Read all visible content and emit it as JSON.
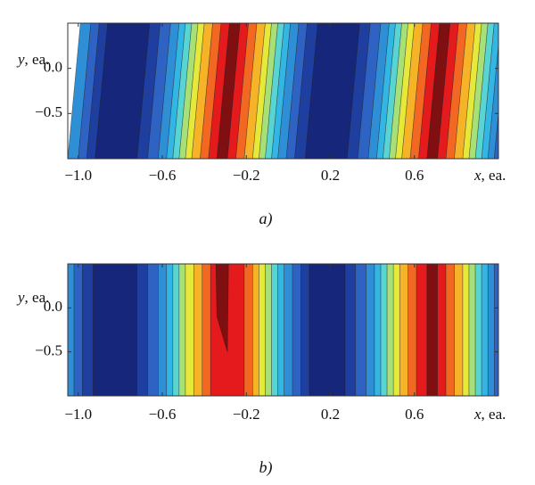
{
  "chart_data": [
    {
      "type": "heatmap",
      "caption": "a)",
      "xlabel_var": "x",
      "xlabel_unit": ", ea.",
      "ylabel_var": "y",
      "ylabel_unit": ", ea.",
      "xlim": [
        -1.05,
        1.0
      ],
      "ylim": [
        -1.0,
        0.5
      ],
      "x_ticks": [
        {
          "value": -1.0,
          "label": "−1.0"
        },
        {
          "value": -0.6,
          "label": "−0.6"
        },
        {
          "value": -0.2,
          "label": "−0.2"
        },
        {
          "value": 0.2,
          "label": "0.2"
        },
        {
          "value": 0.6,
          "label": "0.6"
        }
      ],
      "y_ticks": [
        {
          "value": 0.0,
          "label": "0.0"
        },
        {
          "value": -0.5,
          "label": "−0.5"
        }
      ],
      "bands": [
        {
          "x0": -1.05,
          "x1": -1.0,
          "level": 3
        },
        {
          "x0": -1.0,
          "x1": -0.96,
          "level": 2
        },
        {
          "x0": -0.96,
          "x1": -0.92,
          "level": 1
        },
        {
          "x0": -0.92,
          "x1": -0.72,
          "level": 0
        },
        {
          "x0": -0.72,
          "x1": -0.67,
          "level": 1
        },
        {
          "x0": -0.67,
          "x1": -0.62,
          "level": 2
        },
        {
          "x0": -0.62,
          "x1": -0.58,
          "level": 3
        },
        {
          "x0": -0.58,
          "x1": -0.55,
          "level": 4
        },
        {
          "x0": -0.55,
          "x1": -0.52,
          "level": 5
        },
        {
          "x0": -0.52,
          "x1": -0.49,
          "level": 6
        },
        {
          "x0": -0.49,
          "x1": -0.46,
          "level": 7
        },
        {
          "x0": -0.46,
          "x1": -0.42,
          "level": 8
        },
        {
          "x0": -0.42,
          "x1": -0.38,
          "level": 9
        },
        {
          "x0": -0.38,
          "x1": -0.34,
          "level": 10
        },
        {
          "x0": -0.34,
          "x1": -0.29,
          "level": 11
        },
        {
          "x0": -0.29,
          "x1": -0.25,
          "level": 10
        },
        {
          "x0": -0.25,
          "x1": -0.21,
          "level": 9
        },
        {
          "x0": -0.21,
          "x1": -0.17,
          "level": 8
        },
        {
          "x0": -0.17,
          "x1": -0.14,
          "level": 7
        },
        {
          "x0": -0.14,
          "x1": -0.11,
          "level": 6
        },
        {
          "x0": -0.11,
          "x1": -0.08,
          "level": 5
        },
        {
          "x0": -0.08,
          "x1": -0.05,
          "level": 4
        },
        {
          "x0": -0.05,
          "x1": -0.01,
          "level": 3
        },
        {
          "x0": -0.01,
          "x1": 0.03,
          "level": 2
        },
        {
          "x0": 0.03,
          "x1": 0.08,
          "level": 1
        },
        {
          "x0": 0.08,
          "x1": 0.28,
          "level": 0
        },
        {
          "x0": 0.28,
          "x1": 0.33,
          "level": 1
        },
        {
          "x0": 0.33,
          "x1": 0.38,
          "level": 2
        },
        {
          "x0": 0.38,
          "x1": 0.42,
          "level": 3
        },
        {
          "x0": 0.42,
          "x1": 0.45,
          "level": 4
        },
        {
          "x0": 0.45,
          "x1": 0.48,
          "level": 5
        },
        {
          "x0": 0.48,
          "x1": 0.51,
          "level": 6
        },
        {
          "x0": 0.51,
          "x1": 0.54,
          "level": 7
        },
        {
          "x0": 0.54,
          "x1": 0.58,
          "level": 8
        },
        {
          "x0": 0.58,
          "x1": 0.62,
          "level": 9
        },
        {
          "x0": 0.62,
          "x1": 0.66,
          "level": 10
        },
        {
          "x0": 0.66,
          "x1": 0.71,
          "level": 11
        },
        {
          "x0": 0.71,
          "x1": 0.75,
          "level": 10
        },
        {
          "x0": 0.75,
          "x1": 0.79,
          "level": 9
        },
        {
          "x0": 0.79,
          "x1": 0.83,
          "level": 8
        },
        {
          "x0": 0.83,
          "x1": 0.86,
          "level": 7
        },
        {
          "x0": 0.86,
          "x1": 0.89,
          "level": 6
        },
        {
          "x0": 0.89,
          "x1": 0.92,
          "level": 5
        },
        {
          "x0": 0.92,
          "x1": 0.95,
          "level": 4
        },
        {
          "x0": 0.95,
          "x1": 0.98,
          "level": 3
        },
        {
          "x0": 0.98,
          "x1": 1.0,
          "level": 2
        }
      ],
      "tilt": 0.06,
      "patches": []
    },
    {
      "type": "heatmap",
      "caption": "b)",
      "xlabel_var": "x",
      "xlabel_unit": ", ea.",
      "ylabel_var": "y",
      "ylabel_unit": ", ea.",
      "xlim": [
        -1.05,
        1.0
      ],
      "ylim": [
        -1.0,
        0.5
      ],
      "x_ticks": [
        {
          "value": -1.0,
          "label": "−1.0"
        },
        {
          "value": -0.6,
          "label": "−0.6"
        },
        {
          "value": -0.2,
          "label": "−0.2"
        },
        {
          "value": 0.2,
          "label": "0.2"
        },
        {
          "value": 0.6,
          "label": "0.6"
        }
      ],
      "y_ticks": [
        {
          "value": 0.0,
          "label": "0.0"
        },
        {
          "value": -0.5,
          "label": "−0.5"
        }
      ],
      "bands": [
        {
          "x0": -1.05,
          "x1": -1.02,
          "level": 3
        },
        {
          "x0": -1.02,
          "x1": -0.98,
          "level": 2
        },
        {
          "x0": -0.98,
          "x1": -0.93,
          "level": 1
        },
        {
          "x0": -0.93,
          "x1": -0.72,
          "level": 0
        },
        {
          "x0": -0.72,
          "x1": -0.67,
          "level": 1
        },
        {
          "x0": -0.67,
          "x1": -0.62,
          "level": 2
        },
        {
          "x0": -0.62,
          "x1": -0.58,
          "level": 3
        },
        {
          "x0": -0.58,
          "x1": -0.55,
          "level": 4
        },
        {
          "x0": -0.55,
          "x1": -0.52,
          "level": 5
        },
        {
          "x0": -0.52,
          "x1": -0.49,
          "level": 6
        },
        {
          "x0": -0.49,
          "x1": -0.45,
          "level": 7
        },
        {
          "x0": -0.45,
          "x1": -0.41,
          "level": 8
        },
        {
          "x0": -0.41,
          "x1": -0.37,
          "level": 9
        },
        {
          "x0": -0.37,
          "x1": -0.21,
          "level": 10
        },
        {
          "x0": -0.21,
          "x1": -0.17,
          "level": 9
        },
        {
          "x0": -0.17,
          "x1": -0.14,
          "level": 8
        },
        {
          "x0": -0.14,
          "x1": -0.11,
          "level": 7
        },
        {
          "x0": -0.11,
          "x1": -0.08,
          "level": 6
        },
        {
          "x0": -0.08,
          "x1": -0.05,
          "level": 5
        },
        {
          "x0": -0.05,
          "x1": -0.02,
          "level": 4
        },
        {
          "x0": -0.02,
          "x1": 0.02,
          "level": 3
        },
        {
          "x0": 0.02,
          "x1": 0.06,
          "level": 2
        },
        {
          "x0": 0.06,
          "x1": 0.1,
          "level": 1
        },
        {
          "x0": 0.1,
          "x1": 0.27,
          "level": 0
        },
        {
          "x0": 0.27,
          "x1": 0.32,
          "level": 1
        },
        {
          "x0": 0.32,
          "x1": 0.37,
          "level": 2
        },
        {
          "x0": 0.37,
          "x1": 0.41,
          "level": 3
        },
        {
          "x0": 0.41,
          "x1": 0.44,
          "level": 4
        },
        {
          "x0": 0.44,
          "x1": 0.47,
          "level": 5
        },
        {
          "x0": 0.47,
          "x1": 0.5,
          "level": 6
        },
        {
          "x0": 0.5,
          "x1": 0.53,
          "level": 7
        },
        {
          "x0": 0.53,
          "x1": 0.57,
          "level": 8
        },
        {
          "x0": 0.57,
          "x1": 0.61,
          "level": 9
        },
        {
          "x0": 0.61,
          "x1": 0.66,
          "level": 10
        },
        {
          "x0": 0.66,
          "x1": 0.71,
          "level": 11
        },
        {
          "x0": 0.71,
          "x1": 0.75,
          "level": 10
        },
        {
          "x0": 0.75,
          "x1": 0.79,
          "level": 9
        },
        {
          "x0": 0.79,
          "x1": 0.83,
          "level": 8
        },
        {
          "x0": 0.83,
          "x1": 0.86,
          "level": 7
        },
        {
          "x0": 0.86,
          "x1": 0.89,
          "level": 6
        },
        {
          "x0": 0.89,
          "x1": 0.92,
          "level": 5
        },
        {
          "x0": 0.92,
          "x1": 0.95,
          "level": 4
        },
        {
          "x0": 0.95,
          "x1": 0.98,
          "level": 3
        },
        {
          "x0": 0.98,
          "x1": 1.0,
          "level": 2
        }
      ],
      "tilt": 0.0,
      "patches": [
        {
          "level": 11,
          "points": [
            [
              -0.345,
              0.5
            ],
            [
              -0.285,
              0.5
            ],
            [
              -0.29,
              -0.5
            ],
            [
              -0.34,
              -0.1
            ],
            [
              -0.345,
              0.5
            ]
          ]
        }
      ]
    }
  ],
  "colormap": [
    "#16267a",
    "#1f3fa0",
    "#2e63c4",
    "#2f8fd6",
    "#33b6e4",
    "#58d4d2",
    "#a7e077",
    "#e6e83a",
    "#f7b327",
    "#f26822",
    "#e41a1c",
    "#7f0f10"
  ]
}
